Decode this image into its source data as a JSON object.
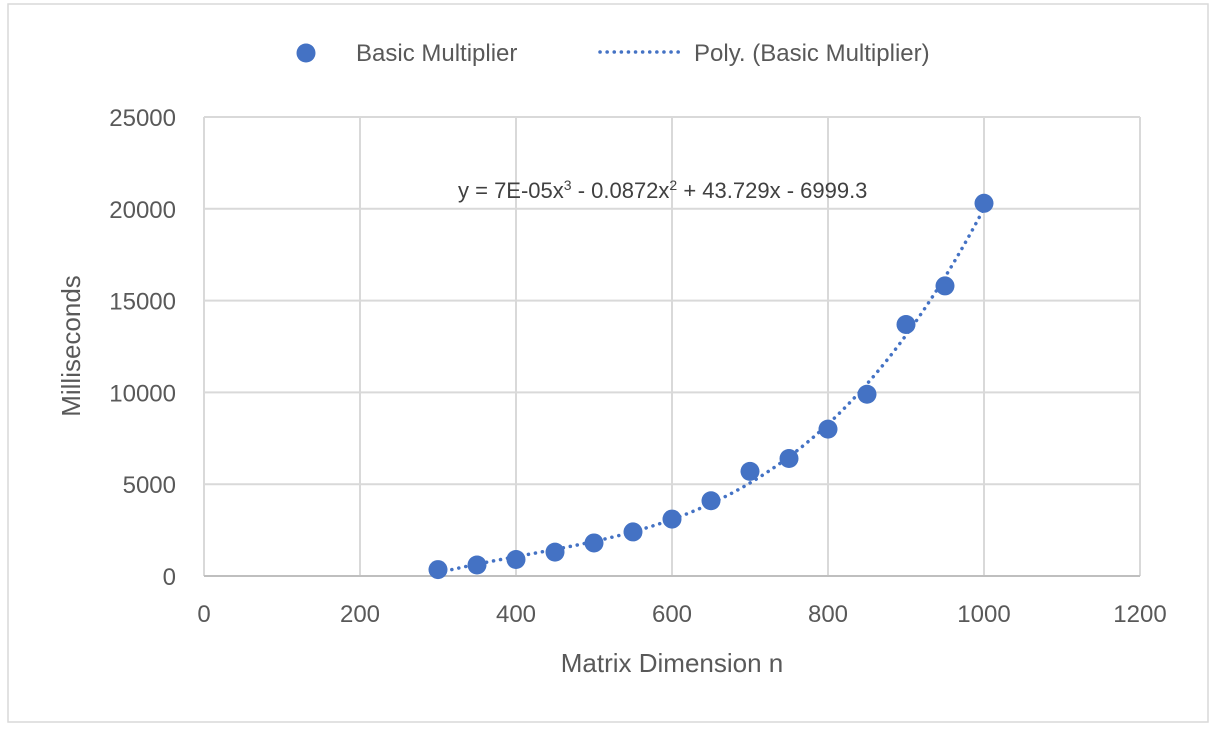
{
  "chart_data": {
    "type": "scatter",
    "title": "",
    "xlabel": "Matrix Dimension n",
    "ylabel": "Milliseconds",
    "xlim": [
      0,
      1200
    ],
    "ylim": [
      0,
      25000
    ],
    "x_ticks": [
      0,
      200,
      400,
      600,
      800,
      1000,
      1200
    ],
    "y_ticks": [
      0,
      5000,
      10000,
      15000,
      20000,
      25000
    ],
    "x_tick_labels": [
      "0",
      "200",
      "400",
      "600",
      "800",
      "1000",
      "1200"
    ],
    "y_tick_labels": [
      "0",
      "5000",
      "10000",
      "15000",
      "20000",
      "25000"
    ],
    "grid": true,
    "legend_position": "top",
    "series": [
      {
        "name": "Basic Multiplier",
        "color": "#4472C4",
        "marker": "circle",
        "x": [
          300,
          350,
          400,
          450,
          500,
          550,
          600,
          650,
          700,
          750,
          800,
          850,
          900,
          950,
          1000
        ],
        "y": [
          350,
          600,
          900,
          1300,
          1800,
          2400,
          3100,
          4100,
          5700,
          6400,
          8000,
          9900,
          13700,
          15800,
          20300
        ]
      }
    ],
    "trendline": {
      "name": "Poly. (Basic Multiplier)",
      "type": "polynomial",
      "order": 3,
      "style": "dotted",
      "color": "#4472C4",
      "x_range": [
        300,
        1000
      ],
      "equation": {
        "main": "y = 7E-05x",
        "exp1": "3",
        "mid": " - 0.0872x",
        "exp2": "2",
        "tail": " + 43.729x - 6999.3"
      }
    }
  }
}
